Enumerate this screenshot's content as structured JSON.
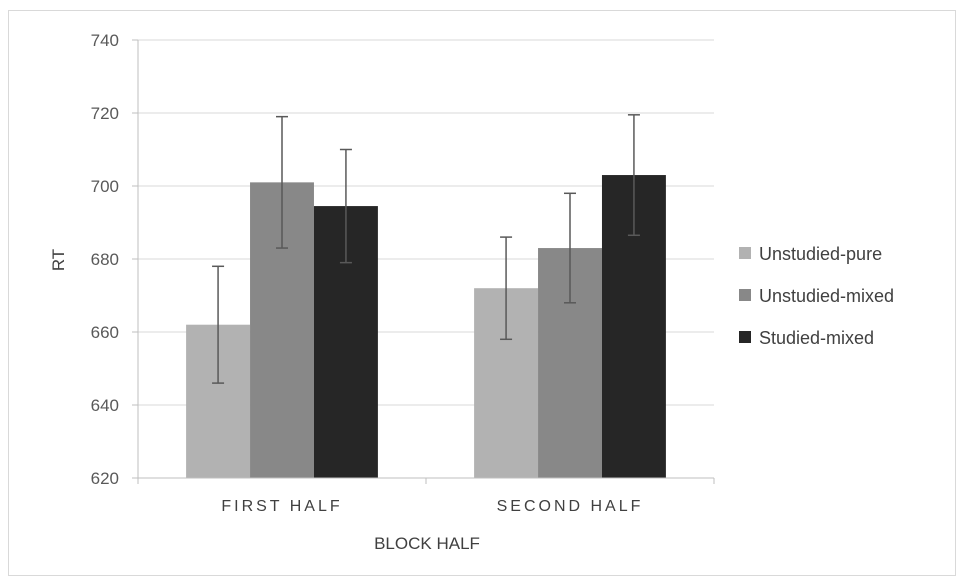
{
  "chart_data": {
    "type": "bar",
    "categories": [
      "FIRST HALF",
      "SECOND HALF"
    ],
    "series": [
      {
        "name": "Unstudied-pure",
        "color": "#b2b2b2",
        "values": [
          662,
          672
        ],
        "errors": [
          16,
          14
        ]
      },
      {
        "name": "Unstudied-mixed",
        "color": "#888888",
        "values": [
          701,
          683
        ],
        "errors": [
          18,
          15
        ]
      },
      {
        "name": "Studied-mixed",
        "color": "#262626",
        "values": [
          694.5,
          703
        ],
        "errors": [
          15.5,
          16.5
        ]
      }
    ],
    "xlabel": "BLOCK HALF",
    "ylabel": "RT",
    "ylim": [
      620,
      740
    ],
    "yticks": [
      620,
      640,
      660,
      680,
      700,
      720,
      740
    ],
    "grid": true,
    "legend_position": "right"
  }
}
